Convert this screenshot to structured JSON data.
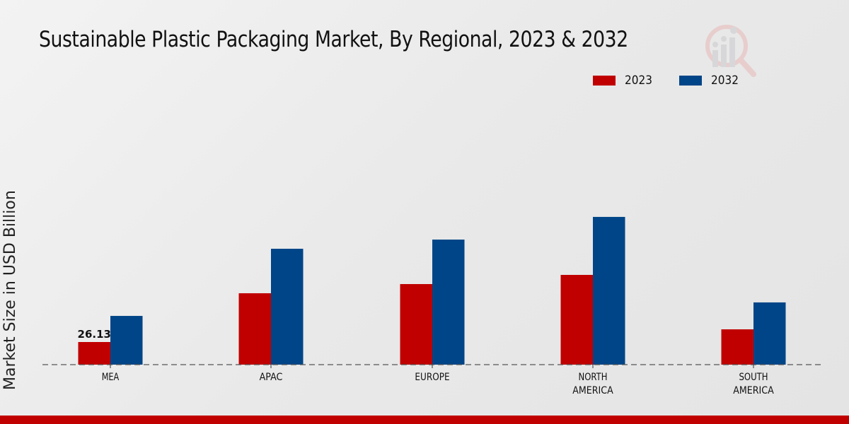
{
  "chart_data": {
    "type": "bar",
    "title": "Sustainable Plastic Packaging Market, By Regional, 2023 & 2032",
    "xlabel": "",
    "ylabel": "Market Size in USD Billion",
    "categories": [
      "MEA",
      "APAC",
      "EUROPE",
      "NORTH AMERICA",
      "SOUTH AMERICA"
    ],
    "category_lines": [
      [
        "MEA"
      ],
      [
        "APAC"
      ],
      [
        "EUROPE"
      ],
      [
        "NORTH",
        "AMERICA"
      ],
      [
        "SOUTH",
        "AMERICA"
      ]
    ],
    "series": [
      {
        "name": "2023",
        "color": "#c00000",
        "values": [
          26.13,
          82.5,
          93.1,
          103.7,
          40.8
        ]
      },
      {
        "name": "2032",
        "color": "#004587",
        "values": [
          56.3,
          133.9,
          144.5,
          170.7,
          71.9
        ]
      }
    ],
    "data_labels": [
      {
        "series": "2023",
        "category": "MEA",
        "text": "26.13"
      }
    ],
    "ylim": [
      0,
      220
    ],
    "grid": false,
    "legend": "top-right"
  },
  "colors": {
    "accent_bar": "#c00000"
  }
}
